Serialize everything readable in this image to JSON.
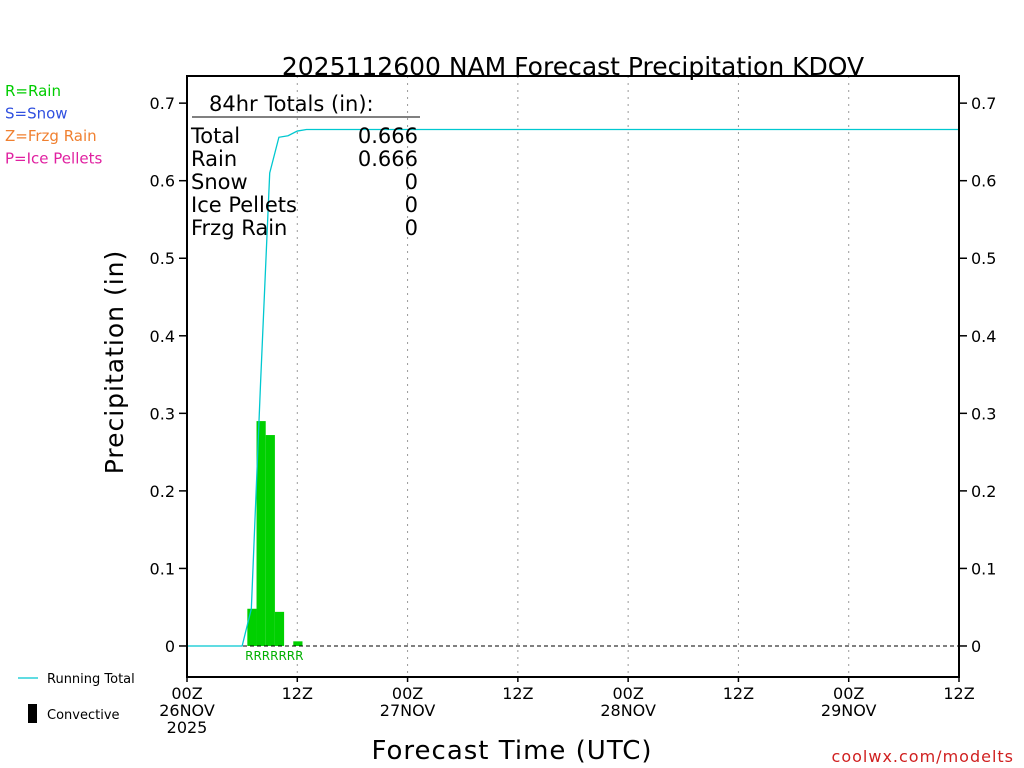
{
  "chart_data": {
    "type": "bar",
    "title": "2025112600 NAM Forecast Precipitation KDOV",
    "xlabel": "Forecast Time (UTC)",
    "ylabel": "Precipitation (in)",
    "ylim": [
      -0.04,
      0.735
    ],
    "xlim_hours": [
      0,
      84
    ],
    "yticks": [
      {
        "value": 0.7,
        "label": "0.7"
      },
      {
        "value": 0.6,
        "label": "0.6"
      },
      {
        "value": 0.5,
        "label": "0.5"
      },
      {
        "value": 0.4,
        "label": "0.4"
      },
      {
        "value": 0.3,
        "label": "0.3"
      },
      {
        "value": 0.2,
        "label": "0.2"
      },
      {
        "value": 0.1,
        "label": "0.1"
      },
      {
        "value": 0.0,
        "label": "0"
      }
    ],
    "xticks": [
      {
        "hour": 0,
        "lines": [
          "00Z",
          "26NOV",
          "2025"
        ]
      },
      {
        "hour": 12,
        "lines": [
          "12Z"
        ]
      },
      {
        "hour": 24,
        "lines": [
          "00Z",
          "27NOV"
        ]
      },
      {
        "hour": 36,
        "lines": [
          "12Z"
        ]
      },
      {
        "hour": 48,
        "lines": [
          "00Z",
          "28NOV"
        ]
      },
      {
        "hour": 60,
        "lines": [
          "12Z"
        ]
      },
      {
        "hour": 72,
        "lines": [
          "00Z",
          "29NOV"
        ]
      },
      {
        "hour": 84,
        "lines": [
          "12Z"
        ]
      }
    ],
    "gridlines_hours": [
      12,
      24,
      36,
      48,
      60,
      72
    ],
    "series": [
      {
        "name": "Rain",
        "color": "#00d000",
        "bars": [
          {
            "hour": 7,
            "value": 0.048
          },
          {
            "hour": 8,
            "value": 0.29
          },
          {
            "hour": 9,
            "value": 0.272
          },
          {
            "hour": 10,
            "value": 0.044
          },
          {
            "hour": 12,
            "value": 0.006
          }
        ]
      },
      {
        "name": "Running Total",
        "color": "#00c8d0",
        "points": [
          {
            "hour": 0,
            "value": 0
          },
          {
            "hour": 6,
            "value": 0
          },
          {
            "hour": 7,
            "value": 0.048
          },
          {
            "hour": 8,
            "value": 0.338
          },
          {
            "hour": 9,
            "value": 0.61
          },
          {
            "hour": 10,
            "value": 0.656
          },
          {
            "hour": 11,
            "value": 0.658
          },
          {
            "hour": 12,
            "value": 0.664
          },
          {
            "hour": 13,
            "value": 0.666
          },
          {
            "hour": 84,
            "value": 0.666
          }
        ]
      }
    ],
    "ptype_marks": {
      "text": "RRRRRRR",
      "color": "#00b000"
    },
    "totals": {
      "heading": "84hr Totals (in):",
      "rows": [
        {
          "label": "Total",
          "value": "0.666"
        },
        {
          "label": "Rain",
          "value": "0.666"
        },
        {
          "label": "Snow",
          "value": "0"
        },
        {
          "label": "Ice Pellets",
          "value": "0"
        },
        {
          "label": "Frzg Rain",
          "value": "0"
        }
      ]
    },
    "ptype_legend": [
      {
        "text": "R=Rain",
        "color": "#00cc00"
      },
      {
        "text": "S=Snow",
        "color": "#3050e0"
      },
      {
        "text": "Z=Frzg Rain",
        "color": "#f08030"
      },
      {
        "text": "P=Ice Pellets",
        "color": "#e020a0"
      }
    ],
    "legend": [
      {
        "text": "Running Total",
        "kind": "line",
        "color": "#00c8d0"
      },
      {
        "text": "Convective",
        "kind": "box",
        "color": "#000000"
      }
    ],
    "credit": {
      "text": "coolwx.com/modelts",
      "color": "#d02020"
    }
  }
}
